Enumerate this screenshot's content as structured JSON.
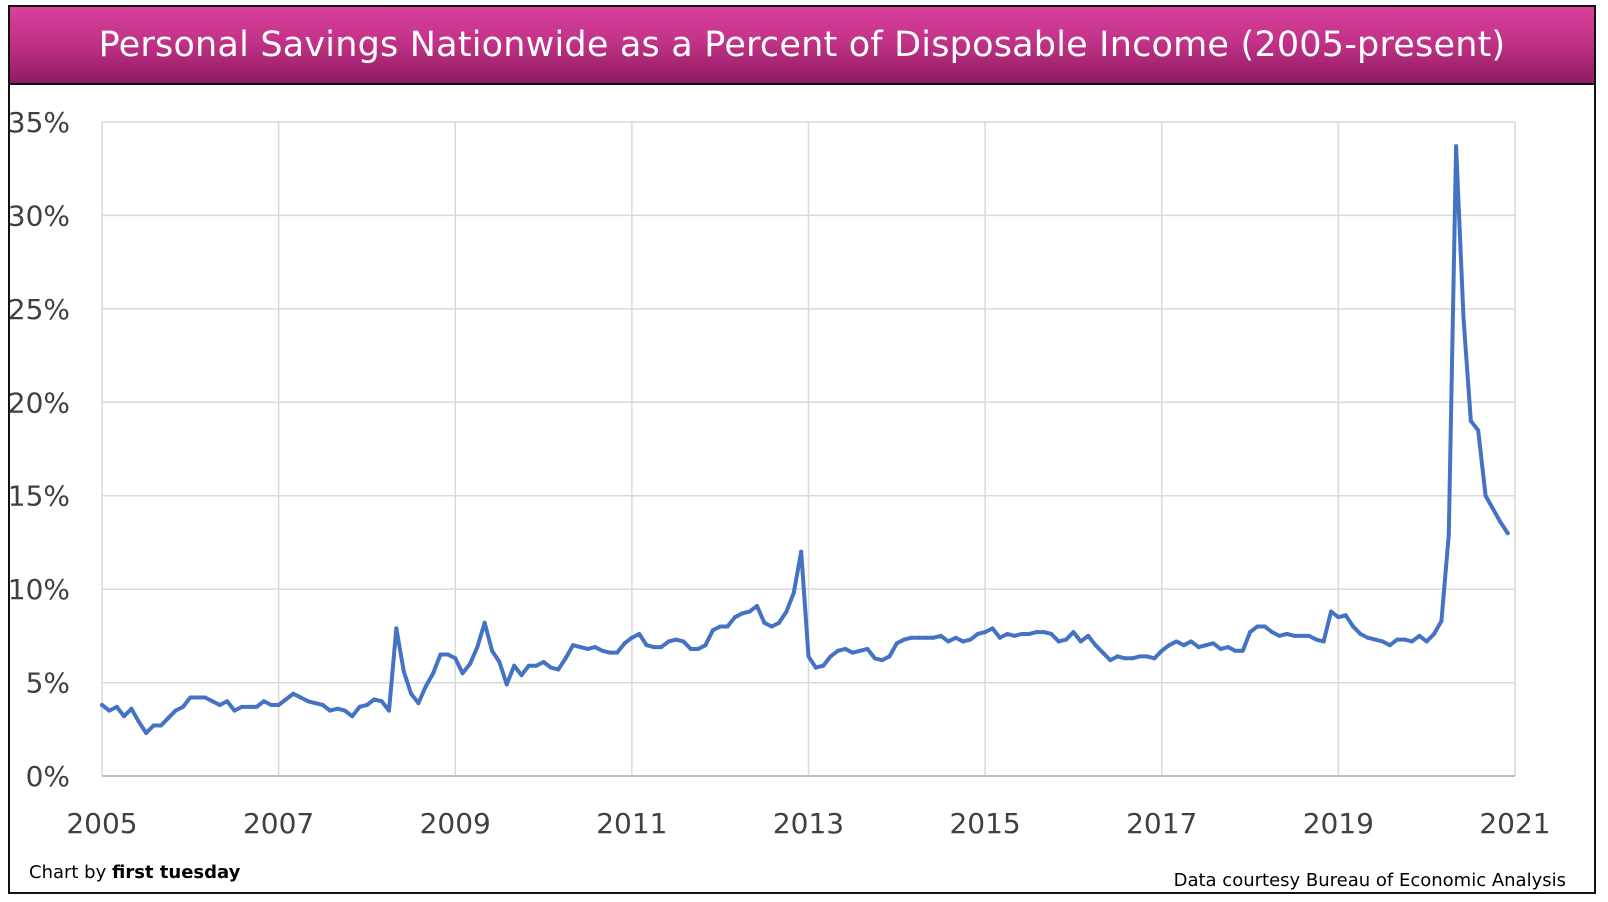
{
  "header": {
    "title": "Personal Savings Nationwide as a Percent of Disposable Income (2005-present)"
  },
  "footer": {
    "credit_prefix": "Chart by ",
    "credit_brand": "first tuesday",
    "source": "Data courtesy Bureau of Economic Analysis"
  },
  "colors": {
    "line": "#4472C4",
    "grid": "#d9d9d9",
    "title_gradient_top": "#d9419d",
    "title_gradient_bottom": "#901c61"
  },
  "chart_data": {
    "type": "line",
    "title": "Personal Savings Nationwide as a Percent of Disposable Income (2005-present)",
    "xlabel": "",
    "ylabel": "",
    "xlim": [
      2005,
      2021
    ],
    "ylim": [
      0,
      35
    ],
    "grid": true,
    "legend": "none",
    "x_ticks": [
      {
        "value": 2005,
        "label": "2005"
      },
      {
        "value": 2007,
        "label": "2007"
      },
      {
        "value": 2009,
        "label": "2009"
      },
      {
        "value": 2011,
        "label": "2011"
      },
      {
        "value": 2013,
        "label": "2013"
      },
      {
        "value": 2015,
        "label": "2015"
      },
      {
        "value": 2017,
        "label": "2017"
      },
      {
        "value": 2019,
        "label": "2019"
      },
      {
        "value": 2021,
        "label": "2021"
      }
    ],
    "y_ticks": [
      {
        "value": 0,
        "label": "0%"
      },
      {
        "value": 5,
        "label": "5%"
      },
      {
        "value": 10,
        "label": "10%"
      },
      {
        "value": 15,
        "label": "15%"
      },
      {
        "value": 20,
        "label": "20%"
      },
      {
        "value": 25,
        "label": "25%"
      },
      {
        "value": 30,
        "label": "30%"
      },
      {
        "value": 35,
        "label": "35%"
      }
    ],
    "series": [
      {
        "points": [
          [
            2005.0,
            3.8
          ],
          [
            2005.083,
            3.5
          ],
          [
            2005.167,
            3.7
          ],
          [
            2005.25,
            3.2
          ],
          [
            2005.333,
            3.6
          ],
          [
            2005.417,
            2.9
          ],
          [
            2005.5,
            2.3
          ],
          [
            2005.583,
            2.7
          ],
          [
            2005.667,
            2.7
          ],
          [
            2005.75,
            3.1
          ],
          [
            2005.833,
            3.5
          ],
          [
            2005.917,
            3.7
          ],
          [
            2006.0,
            4.2
          ],
          [
            2006.083,
            4.2
          ],
          [
            2006.167,
            4.2
          ],
          [
            2006.25,
            4.0
          ],
          [
            2006.333,
            3.8
          ],
          [
            2006.417,
            4.0
          ],
          [
            2006.5,
            3.5
          ],
          [
            2006.583,
            3.7
          ],
          [
            2006.667,
            3.7
          ],
          [
            2006.75,
            3.7
          ],
          [
            2006.833,
            4.0
          ],
          [
            2006.917,
            3.8
          ],
          [
            2007.0,
            3.8
          ],
          [
            2007.083,
            4.1
          ],
          [
            2007.167,
            4.4
          ],
          [
            2007.25,
            4.2
          ],
          [
            2007.333,
            4.0
          ],
          [
            2007.417,
            3.9
          ],
          [
            2007.5,
            3.8
          ],
          [
            2007.583,
            3.5
          ],
          [
            2007.667,
            3.6
          ],
          [
            2007.75,
            3.5
          ],
          [
            2007.833,
            3.2
          ],
          [
            2007.917,
            3.7
          ],
          [
            2008.0,
            3.8
          ],
          [
            2008.083,
            4.1
          ],
          [
            2008.167,
            4.0
          ],
          [
            2008.25,
            3.5
          ],
          [
            2008.333,
            7.9
          ],
          [
            2008.417,
            5.6
          ],
          [
            2008.5,
            4.4
          ],
          [
            2008.583,
            3.9
          ],
          [
            2008.667,
            4.8
          ],
          [
            2008.75,
            5.5
          ],
          [
            2008.833,
            6.5
          ],
          [
            2008.917,
            6.5
          ],
          [
            2009.0,
            6.3
          ],
          [
            2009.083,
            5.5
          ],
          [
            2009.167,
            6.0
          ],
          [
            2009.25,
            6.9
          ],
          [
            2009.333,
            8.2
          ],
          [
            2009.417,
            6.7
          ],
          [
            2009.5,
            6.1
          ],
          [
            2009.583,
            4.9
          ],
          [
            2009.667,
            5.9
          ],
          [
            2009.75,
            5.4
          ],
          [
            2009.833,
            5.9
          ],
          [
            2009.917,
            5.9
          ],
          [
            2010.0,
            6.1
          ],
          [
            2010.083,
            5.8
          ],
          [
            2010.167,
            5.7
          ],
          [
            2010.25,
            6.3
          ],
          [
            2010.333,
            7.0
          ],
          [
            2010.417,
            6.9
          ],
          [
            2010.5,
            6.8
          ],
          [
            2010.583,
            6.9
          ],
          [
            2010.667,
            6.7
          ],
          [
            2010.75,
            6.6
          ],
          [
            2010.833,
            6.6
          ],
          [
            2010.917,
            7.1
          ],
          [
            2011.0,
            7.4
          ],
          [
            2011.083,
            7.6
          ],
          [
            2011.167,
            7.0
          ],
          [
            2011.25,
            6.9
          ],
          [
            2011.333,
            6.9
          ],
          [
            2011.417,
            7.2
          ],
          [
            2011.5,
            7.3
          ],
          [
            2011.583,
            7.2
          ],
          [
            2011.667,
            6.8
          ],
          [
            2011.75,
            6.8
          ],
          [
            2011.833,
            7.0
          ],
          [
            2011.917,
            7.8
          ],
          [
            2012.0,
            8.0
          ],
          [
            2012.083,
            8.0
          ],
          [
            2012.167,
            8.5
          ],
          [
            2012.25,
            8.7
          ],
          [
            2012.333,
            8.8
          ],
          [
            2012.417,
            9.1
          ],
          [
            2012.5,
            8.2
          ],
          [
            2012.583,
            8.0
          ],
          [
            2012.667,
            8.2
          ],
          [
            2012.75,
            8.8
          ],
          [
            2012.833,
            9.8
          ],
          [
            2012.917,
            12.0
          ],
          [
            2013.0,
            6.4
          ],
          [
            2013.083,
            5.8
          ],
          [
            2013.167,
            5.9
          ],
          [
            2013.25,
            6.4
          ],
          [
            2013.333,
            6.7
          ],
          [
            2013.417,
            6.8
          ],
          [
            2013.5,
            6.6
          ],
          [
            2013.583,
            6.7
          ],
          [
            2013.667,
            6.8
          ],
          [
            2013.75,
            6.3
          ],
          [
            2013.833,
            6.2
          ],
          [
            2013.917,
            6.4
          ],
          [
            2014.0,
            7.1
          ],
          [
            2014.083,
            7.3
          ],
          [
            2014.167,
            7.4
          ],
          [
            2014.25,
            7.4
          ],
          [
            2014.333,
            7.4
          ],
          [
            2014.417,
            7.4
          ],
          [
            2014.5,
            7.5
          ],
          [
            2014.583,
            7.2
          ],
          [
            2014.667,
            7.4
          ],
          [
            2014.75,
            7.2
          ],
          [
            2014.833,
            7.3
          ],
          [
            2014.917,
            7.6
          ],
          [
            2015.0,
            7.7
          ],
          [
            2015.083,
            7.9
          ],
          [
            2015.167,
            7.4
          ],
          [
            2015.25,
            7.6
          ],
          [
            2015.333,
            7.5
          ],
          [
            2015.417,
            7.6
          ],
          [
            2015.5,
            7.6
          ],
          [
            2015.583,
            7.7
          ],
          [
            2015.667,
            7.7
          ],
          [
            2015.75,
            7.6
          ],
          [
            2015.833,
            7.2
          ],
          [
            2015.917,
            7.3
          ],
          [
            2016.0,
            7.7
          ],
          [
            2016.083,
            7.2
          ],
          [
            2016.167,
            7.5
          ],
          [
            2016.25,
            7.0
          ],
          [
            2016.333,
            6.6
          ],
          [
            2016.417,
            6.2
          ],
          [
            2016.5,
            6.4
          ],
          [
            2016.583,
            6.3
          ],
          [
            2016.667,
            6.3
          ],
          [
            2016.75,
            6.4
          ],
          [
            2016.833,
            6.4
          ],
          [
            2016.917,
            6.3
          ],
          [
            2017.0,
            6.7
          ],
          [
            2017.083,
            7.0
          ],
          [
            2017.167,
            7.2
          ],
          [
            2017.25,
            7.0
          ],
          [
            2017.333,
            7.2
          ],
          [
            2017.417,
            6.9
          ],
          [
            2017.5,
            7.0
          ],
          [
            2017.583,
            7.1
          ],
          [
            2017.667,
            6.8
          ],
          [
            2017.75,
            6.9
          ],
          [
            2017.833,
            6.7
          ],
          [
            2017.917,
            6.7
          ],
          [
            2018.0,
            7.7
          ],
          [
            2018.083,
            8.0
          ],
          [
            2018.167,
            8.0
          ],
          [
            2018.25,
            7.7
          ],
          [
            2018.333,
            7.5
          ],
          [
            2018.417,
            7.6
          ],
          [
            2018.5,
            7.5
          ],
          [
            2018.583,
            7.5
          ],
          [
            2018.667,
            7.5
          ],
          [
            2018.75,
            7.3
          ],
          [
            2018.833,
            7.2
          ],
          [
            2018.917,
            8.8
          ],
          [
            2019.0,
            8.5
          ],
          [
            2019.083,
            8.6
          ],
          [
            2019.167,
            8.0
          ],
          [
            2019.25,
            7.6
          ],
          [
            2019.333,
            7.4
          ],
          [
            2019.417,
            7.3
          ],
          [
            2019.5,
            7.2
          ],
          [
            2019.583,
            7.0
          ],
          [
            2019.667,
            7.3
          ],
          [
            2019.75,
            7.3
          ],
          [
            2019.833,
            7.2
          ],
          [
            2019.917,
            7.5
          ],
          [
            2020.0,
            7.2
          ],
          [
            2020.083,
            7.6
          ],
          [
            2020.167,
            8.3
          ],
          [
            2020.25,
            12.9
          ],
          [
            2020.333,
            33.7
          ],
          [
            2020.417,
            24.5
          ],
          [
            2020.5,
            19.0
          ],
          [
            2020.583,
            18.5
          ],
          [
            2020.667,
            15.0
          ],
          [
            2020.75,
            14.3
          ],
          [
            2020.833,
            13.6
          ],
          [
            2020.917,
            13.0
          ]
        ]
      }
    ]
  }
}
